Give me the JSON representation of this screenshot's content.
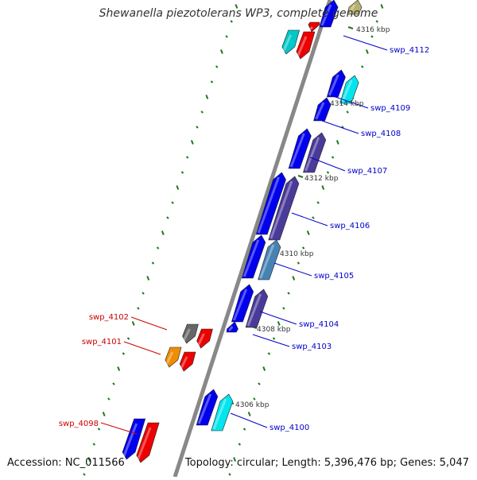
{
  "title": "Shewanella piezotolerans WP3, complete genome",
  "accession": "Accession: NC_011566",
  "topology": "Topology: circular; Length: 5,396,476 bp; Genes: 5,047",
  "colors": {
    "backbone": "#888888",
    "tick": "#1a7a1a",
    "ruler_text": "#333333",
    "label_forward": "#cc0000",
    "label_reverse": "#0000cc"
  },
  "ruler_labels": [
    "4316 kbp",
    "4314 kbp",
    "4312 kbp",
    "4310 kbp",
    "4308 kbp",
    "4306 kbp"
  ],
  "gene_labels": [
    {
      "text": "swp_4112",
      "strand": "reverse"
    },
    {
      "text": "swp_4109",
      "strand": "reverse"
    },
    {
      "text": "swp_4108",
      "strand": "reverse"
    },
    {
      "text": "swp_4107",
      "strand": "reverse"
    },
    {
      "text": "swp_4106",
      "strand": "reverse"
    },
    {
      "text": "swp_4105",
      "strand": "reverse"
    },
    {
      "text": "swp_4104",
      "strand": "reverse"
    },
    {
      "text": "swp_4103",
      "strand": "reverse"
    },
    {
      "text": "swp_4100",
      "strand": "reverse"
    },
    {
      "text": "swp_4102",
      "strand": "forward"
    },
    {
      "text": "swp_4101",
      "strand": "forward"
    },
    {
      "text": "swp_4098",
      "strand": "forward"
    }
  ]
}
